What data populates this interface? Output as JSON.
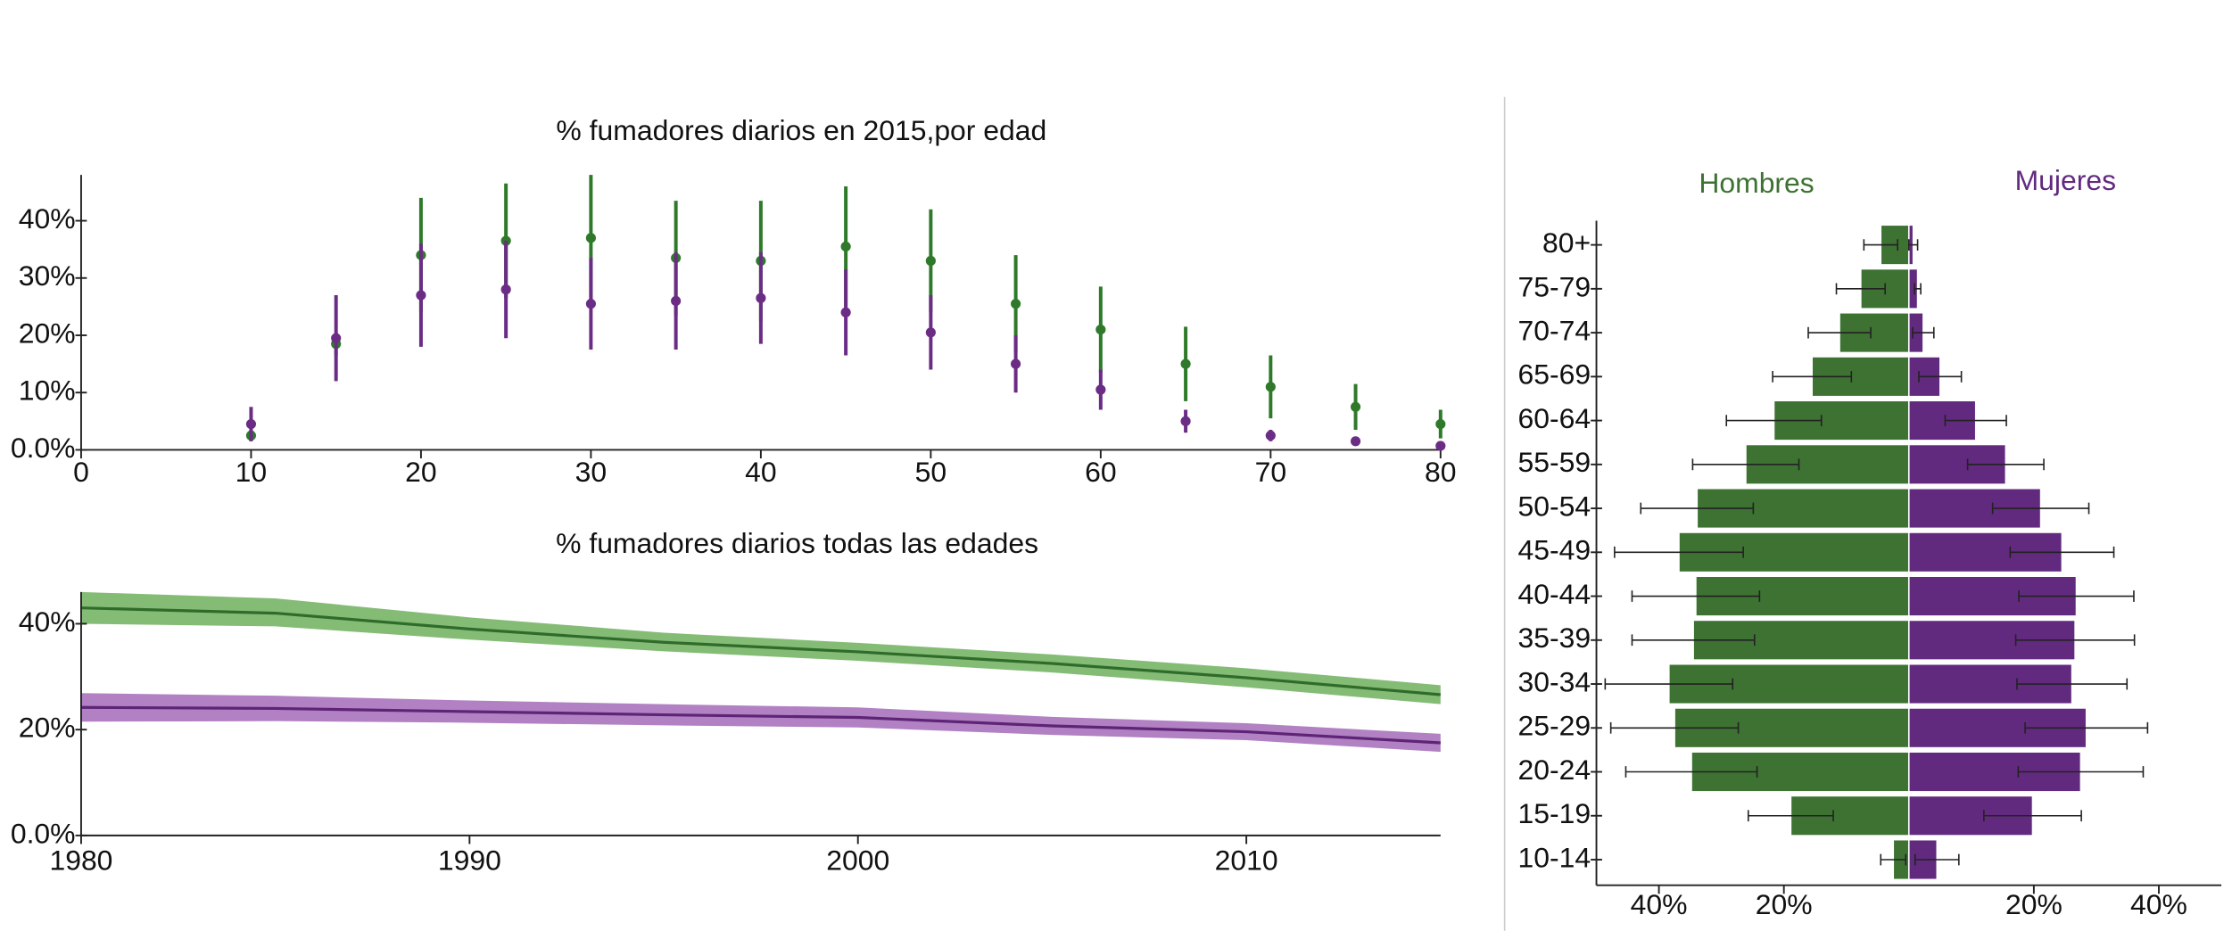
{
  "chart_data": [
    {
      "type": "errorbar",
      "title": "% fumadores diarios en 2015,por edad",
      "x": [
        10,
        15,
        20,
        25,
        30,
        35,
        40,
        45,
        50,
        55,
        60,
        65,
        70,
        75,
        80
      ],
      "xlim": [
        0,
        80
      ],
      "xticks": [
        0,
        10,
        20,
        30,
        40,
        50,
        60,
        70,
        80
      ],
      "ylim": [
        0,
        48
      ],
      "yticks": [
        {
          "value": 0,
          "label": "0.0%"
        },
        {
          "value": 10,
          "label": "10%"
        },
        {
          "value": 20,
          "label": "20%"
        },
        {
          "value": 30,
          "label": "30%"
        },
        {
          "value": 40,
          "label": "40%"
        }
      ],
      "series": [
        {
          "color": "#2f7a2a",
          "values": [
            2.5,
            18.5,
            34,
            36.5,
            37,
            33.5,
            33,
            35.5,
            33,
            25.5,
            21,
            15,
            11,
            7.5,
            4.5
          ],
          "error": [
            1,
            2,
            10,
            10,
            11,
            10,
            10.5,
            10.5,
            9,
            8.5,
            7.5,
            6.5,
            5.5,
            4,
            2.5
          ]
        },
        {
          "color": "#6b2c86",
          "values": [
            4.5,
            19.5,
            27,
            28,
            25.5,
            26,
            26.5,
            24,
            20.5,
            15,
            10.5,
            5,
            2.5,
            1.5,
            0.7
          ],
          "error": [
            3,
            7.5,
            9,
            8.5,
            8,
            8.5,
            8,
            7.5,
            6.5,
            5,
            3.5,
            2,
            1,
            0.5,
            0.5
          ]
        }
      ]
    },
    {
      "type": "band",
      "title": "% fumadores diarios todas las edades",
      "x": [
        1980,
        1985,
        1990,
        1995,
        2000,
        2005,
        2010,
        2015
      ],
      "xlim": [
        1980,
        2015
      ],
      "xticks": [
        1980,
        1990,
        2000,
        2010
      ],
      "ylim": [
        0,
        46
      ],
      "yticks": [
        {
          "value": 0,
          "label": "0.0%"
        },
        {
          "value": 20,
          "label": "20%"
        },
        {
          "value": 40,
          "label": "40%"
        }
      ],
      "series": [
        {
          "color": "#2f6b2a",
          "band_color": "#6fb05e",
          "values": [
            43,
            42,
            39,
            36.5,
            34.7,
            32.5,
            29.8,
            26.6
          ],
          "lower": [
            40,
            39.5,
            37,
            34.8,
            33,
            30.8,
            28,
            24.8
          ],
          "upper": [
            46,
            44.8,
            41.2,
            38.3,
            36.4,
            34.2,
            31.6,
            28.4
          ]
        },
        {
          "color": "#5e2475",
          "band_color": "#a36bb8",
          "values": [
            24.2,
            24,
            23.4,
            22.8,
            22.3,
            20.7,
            19.6,
            17.5
          ],
          "lower": [
            21.5,
            21.6,
            21.3,
            20.8,
            20.4,
            19,
            18,
            15.8
          ],
          "upper": [
            26.9,
            26.4,
            25.5,
            24.8,
            24.2,
            22.4,
            21.2,
            19.2
          ]
        }
      ]
    },
    {
      "type": "pyramid",
      "categories": [
        "10-14",
        "15-19",
        "20-24",
        "25-29",
        "30-34",
        "35-39",
        "40-44",
        "45-49",
        "50-54",
        "55-59",
        "60-64",
        "65-69",
        "70-74",
        "75-79",
        "80+"
      ],
      "xlim": [
        -50,
        50
      ],
      "xticks": [
        {
          "value": -40,
          "label": "40%"
        },
        {
          "value": -20,
          "label": "20%"
        },
        {
          "value": 20,
          "label": "20%"
        },
        {
          "value": 40,
          "label": "40%"
        }
      ],
      "series": [
        {
          "name": "Hombres",
          "color": "#3d7232",
          "side": "left",
          "values": [
            2.5,
            18.9,
            34.8,
            37.5,
            38.4,
            34.5,
            34.1,
            36.8,
            33.9,
            26.1,
            21.6,
            15.5,
            11.1,
            7.7,
            4.5
          ],
          "error": [
            2,
            6.8,
            10.5,
            10.2,
            10.2,
            9.8,
            10.2,
            10.3,
            9,
            8.5,
            7.6,
            6.3,
            5,
            3.9,
            2.7
          ]
        },
        {
          "name": "Mujeres",
          "color": "#612a7e",
          "side": "right",
          "values": [
            4.5,
            19.8,
            27.5,
            28.4,
            26.1,
            26.6,
            26.8,
            24.5,
            21.1,
            15.5,
            10.7,
            5,
            2.3,
            1.4,
            0.7
          ],
          "error": [
            3.5,
            7.8,
            10,
            9.8,
            8.8,
            9.5,
            9.2,
            8.3,
            7.7,
            6.1,
            4.9,
            3.4,
            1.7,
            0.5,
            0.7
          ]
        }
      ]
    }
  ]
}
